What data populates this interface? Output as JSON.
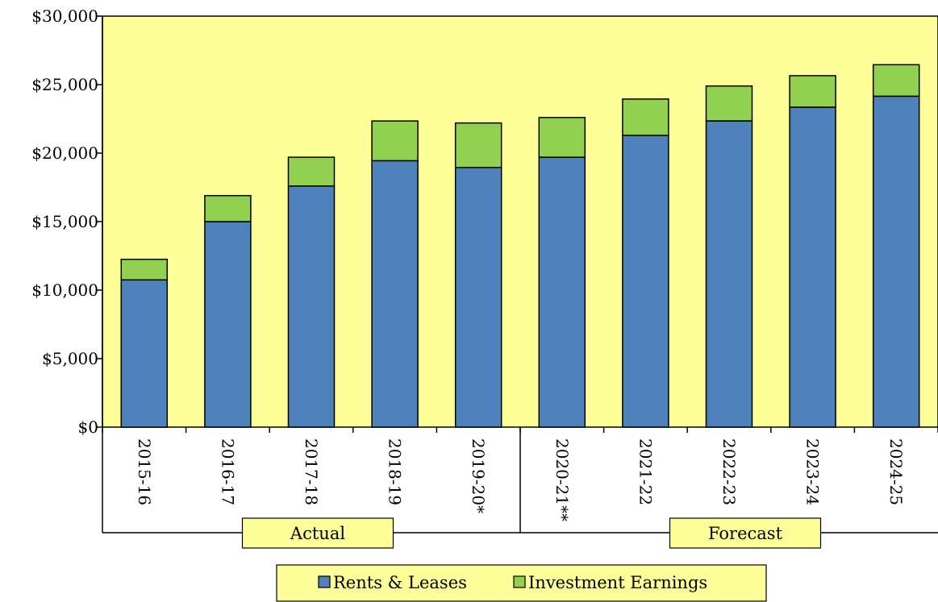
{
  "colors": {
    "plot_background": "#FFFF99",
    "rents": "#4F81BD",
    "investment": "#92D050"
  },
  "chart_data": {
    "type": "bar",
    "stacked": true,
    "categories": [
      "2015-16",
      "2016-17",
      "2017-18",
      "2018-19",
      "2019-20*",
      "2020-21**",
      "2021-22",
      "2022-23",
      "2023-24",
      "2024-25"
    ],
    "series": [
      {
        "name": "Rents & Leases",
        "values": [
          10750,
          15000,
          17600,
          19450,
          18950,
          19700,
          21300,
          22350,
          23350,
          24150
        ]
      },
      {
        "name": "Investment Earnings",
        "values": [
          1500,
          1900,
          2100,
          2900,
          3250,
          2900,
          2650,
          2550,
          2300,
          2300
        ]
      }
    ],
    "ylim": [
      0,
      30000
    ],
    "y_ticks": [
      "$0",
      "$5,000",
      "$10,000",
      "$15,000",
      "$20,000",
      "$25,000",
      "$30,000"
    ],
    "groups": [
      {
        "label": "Actual",
        "count": 5
      },
      {
        "label": "Forecast",
        "count": 5
      }
    ],
    "legend": {
      "position": "bottom",
      "entries": [
        "Rents & Leases",
        "Investment Earnings"
      ]
    },
    "grid": false,
    "title": "",
    "xlabel": "",
    "ylabel": ""
  }
}
